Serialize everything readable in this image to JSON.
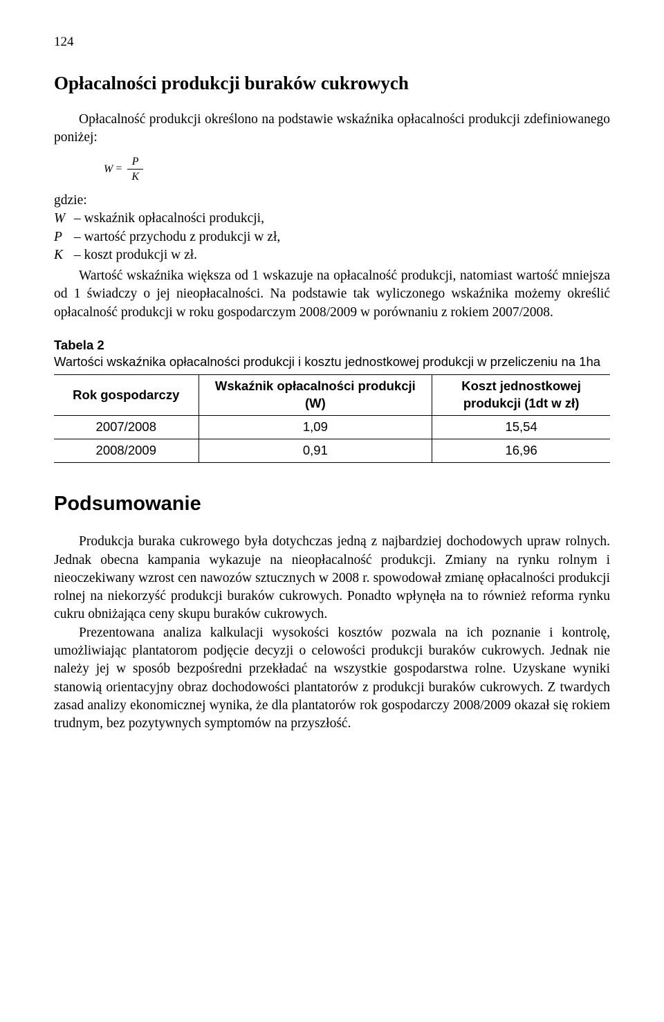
{
  "page_number": "124",
  "section_title": "Opłacalności produkcji buraków cukrowych",
  "intro_para": "Opłacalność produkcji określono na podstawie wskaźnika opłacalności produkcji zdefiniowanego poniżej:",
  "formula": {
    "lhs": "W",
    "num": "P",
    "den": "K"
  },
  "defs_label": "gdzie:",
  "defs": [
    {
      "var": "W",
      "text": " – wskaźnik opłacalności produkcji,"
    },
    {
      "var": "P",
      "text": " – wartość przychodu z produkcji w zł,"
    },
    {
      "var": "K",
      "text": " – koszt produkcji w zł."
    }
  ],
  "after_defs_para": "Wartość wskaźnika większa od 1 wskazuje na opłacalność produkcji, natomiast wartość mniejsza od 1 świadczy o jej nieopłacalności. Na podstawie tak wyliczonego wskaźnika możemy określić opłacalność produkcji w roku gospodarczym 2008/2009 w porównaniu z rokiem 2007/2008.",
  "table": {
    "label": "Tabela 2",
    "caption": "Wartości wskaźnika opłacalności produkcji i kosztu jednostkowej produkcji w przeliczeniu na 1ha",
    "columns": [
      "Rok gospodarczy",
      "Wskaźnik opłacalności produkcji (W)",
      "Koszt jednostkowej produkcji (1dt w zł)"
    ],
    "col_widths": [
      "26%",
      "42%",
      "32%"
    ],
    "rows": [
      [
        "2007/2008",
        "1,09",
        "15,54"
      ],
      [
        "2008/2009",
        "0,91",
        "16,96"
      ]
    ]
  },
  "summary_title": "Podsumowanie",
  "summary_p1": "Produkcja buraka cukrowego była dotychczas jedną z najbardziej dochodowych upraw rolnych. Jednak obecna kampania wykazuje na nieopłacalność produkcji. Zmiany na rynku rolnym i nieoczekiwany wzrost cen nawozów sztucznych w 2008 r. spowodował zmianę opłacalności produkcji rolnej na niekorzyść produkcji buraków cukrowych. Ponadto wpłynęła na to również reforma rynku cukru obniżająca ceny skupu buraków cukrowych.",
  "summary_p2": "Prezentowana analiza kalkulacji wysokości kosztów pozwala na ich poznanie i kontrolę, umożliwiając plantatorom podjęcie decyzji o celowości produkcji buraków cukrowych. Jednak nie należy jej w sposób bezpośredni przekładać na wszystkie gospodarstwa rolne. Uzyskane wyniki stanowią orientacyjny obraz dochodowości plantatorów z produkcji buraków cukrowych. Z twardych zasad analizy ekonomicznej wynika, że dla plantatorów rok gospodarczy 2008/2009 okazał się rokiem trudnym, bez pozytywnych symptomów na przyszłość."
}
